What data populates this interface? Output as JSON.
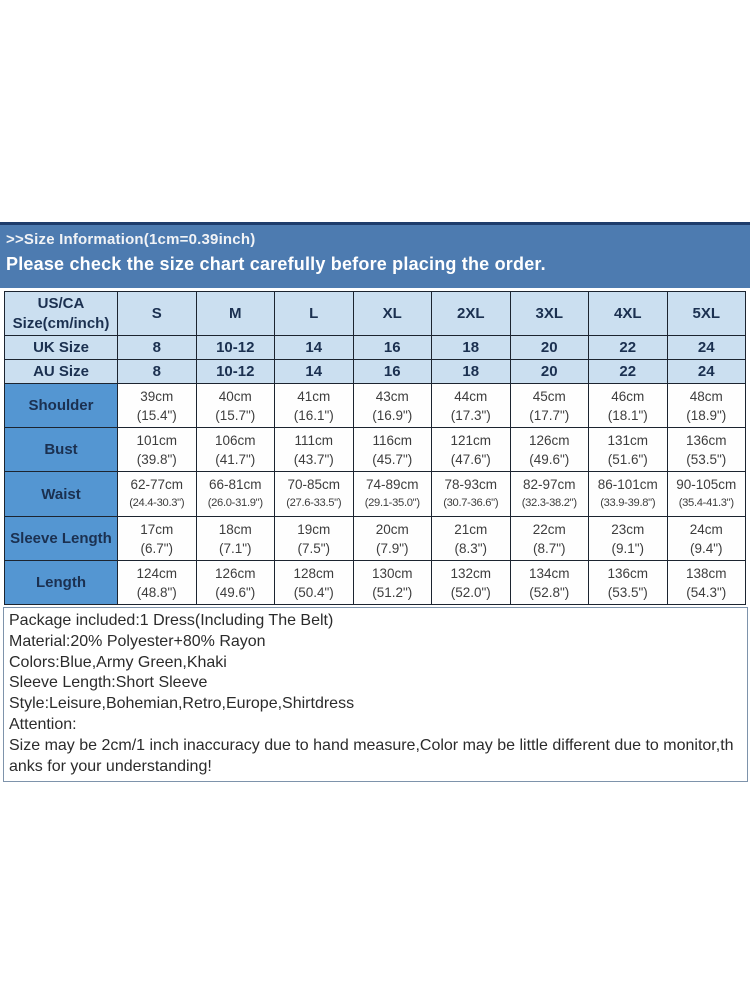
{
  "banner": {
    "title": ">>Size Information(1cm=0.39inch)",
    "subtitle": "Please check the size chart carefully before placing the order."
  },
  "size_table": {
    "corner_label": "US/CA Size(cm/inch)",
    "columns": [
      "S",
      "M",
      "L",
      "XL",
      "2XL",
      "3XL",
      "4XL",
      "5XL"
    ],
    "header_rows": [
      {
        "label": "UK Size",
        "values": [
          "8",
          "10-12",
          "14",
          "16",
          "18",
          "20",
          "22",
          "24"
        ]
      },
      {
        "label": "AU Size",
        "values": [
          "8",
          "10-12",
          "14",
          "16",
          "18",
          "20",
          "22",
          "24"
        ]
      }
    ],
    "measurement_rows": [
      {
        "label": "Shoulder",
        "cm": [
          "39cm",
          "40cm",
          "41cm",
          "43cm",
          "44cm",
          "45cm",
          "46cm",
          "48cm"
        ],
        "inch": [
          "(15.4\")",
          "(15.7\")",
          "(16.1\")",
          "(16.9\")",
          "(17.3\")",
          "(17.7\")",
          "(18.1\")",
          "(18.9\")"
        ]
      },
      {
        "label": "Bust",
        "cm": [
          "101cm",
          "106cm",
          "111cm",
          "116cm",
          "121cm",
          "126cm",
          "131cm",
          "136cm"
        ],
        "inch": [
          "(39.8\")",
          "(41.7\")",
          "(43.7\")",
          "(45.7\")",
          "(47.6\")",
          "(49.6\")",
          "(51.6\")",
          "(53.5\")"
        ]
      },
      {
        "label": "Waist",
        "cm": [
          "62-77cm",
          "66-81cm",
          "70-85cm",
          "74-89cm",
          "78-93cm",
          "82-97cm",
          "86-101cm",
          "90-105cm"
        ],
        "inch": [
          "(24.4-30.3\")",
          "(26.0-31.9\")",
          "(27.6-33.5\")",
          "(29.1-35.0\")",
          "(30.7-36.6\")",
          "(32.3-38.2\")",
          "(33.9-39.8\")",
          "(35.4-41.3\")"
        ]
      },
      {
        "label": "Sleeve Length",
        "cm": [
          "17cm",
          "18cm",
          "19cm",
          "20cm",
          "21cm",
          "22cm",
          "23cm",
          "24cm"
        ],
        "inch": [
          "(6.7\")",
          "(7.1\")",
          "(7.5\")",
          "(7.9\")",
          "(8.3\")",
          "(8.7\")",
          "(9.1\")",
          "(9.4\")"
        ]
      },
      {
        "label": "Length",
        "cm": [
          "124cm",
          "126cm",
          "128cm",
          "130cm",
          "132cm",
          "134cm",
          "136cm",
          "138cm"
        ],
        "inch": [
          "(48.8\")",
          "(49.6\")",
          "(50.4\")",
          "(51.2\")",
          "(52.0\")",
          "(52.8\")",
          "(53.5\")",
          "(54.3\")"
        ]
      }
    ]
  },
  "details": {
    "lines": [
      "Package included:1 Dress(Including The Belt)",
      "Material:20% Polyester+80% Rayon",
      "Colors:Blue,Army Green,Khaki",
      "Sleeve Length:Short Sleeve",
      "Style:Leisure,Bohemian,Retro,Europe,Shirtdress",
      "Attention:",
      "Size may be 2cm/1 inch inaccuracy due to hand measure,Color may be little different due to monitor,thanks for your understanding!"
    ]
  },
  "colors": {
    "banner_blue": "#4d7bb0",
    "banner_border": "#1e3c6b",
    "header_cell_blue": "#cbdff0",
    "label_cell_blue": "#5496d2",
    "header_text": "#1b3050",
    "data_text": "#3d3d3d"
  }
}
